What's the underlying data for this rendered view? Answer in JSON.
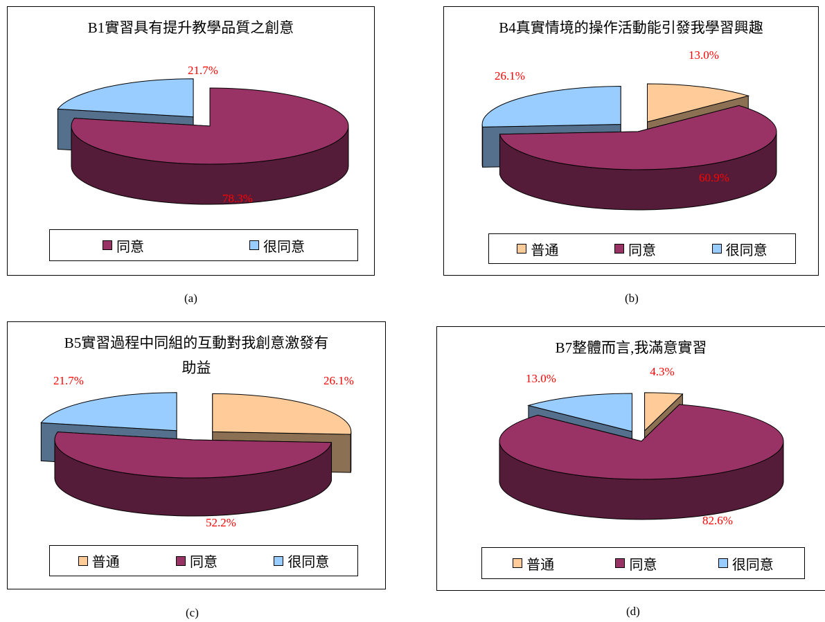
{
  "colors": {
    "normal": "#ffcc99",
    "agree": "#993366",
    "strongly_agree": "#99ccff",
    "label": "#ff0000"
  },
  "captions": [
    "(a)",
    "(b)",
    "(c)",
    "(d)"
  ],
  "chart_data": [
    {
      "type": "pie",
      "title": "B1實習具有提升教學品質之創意",
      "categories": [
        "同意",
        "很同意"
      ],
      "values": [
        78.3,
        21.7
      ],
      "labels": [
        "78.3%",
        "21.7%"
      ],
      "legend": [
        "同意",
        "很同意"
      ],
      "legend_position": "bottom"
    },
    {
      "type": "pie",
      "title": "B4真實情境的操作活動能引發我學習興趣",
      "categories": [
        "普通",
        "同意",
        "很同意"
      ],
      "values": [
        13.0,
        60.9,
        26.1
      ],
      "labels": [
        "13.0%",
        "60.9%",
        "26.1%"
      ],
      "legend": [
        "普通",
        "同意",
        "很同意"
      ],
      "legend_position": "bottom"
    },
    {
      "type": "pie",
      "title": "B5實習過程中同組的互動對我創意激發有助益",
      "title_lines": [
        "B5實習過程中同組的互動對我創意激發有",
        "助益"
      ],
      "categories": [
        "普通",
        "同意",
        "很同意"
      ],
      "values": [
        26.1,
        52.2,
        21.7
      ],
      "labels": [
        "26.1%",
        "52.2%",
        "21.7%"
      ],
      "legend": [
        "普通",
        "同意",
        "很同意"
      ],
      "legend_position": "bottom"
    },
    {
      "type": "pie",
      "title": "B7整體而言,我滿意實習",
      "categories": [
        "普通",
        "同意",
        "很同意"
      ],
      "values": [
        4.3,
        82.6,
        13.0
      ],
      "labels": [
        "4.3%",
        "82.6%",
        "13.0%"
      ],
      "legend": [
        "普通",
        "同意",
        "很同意"
      ],
      "legend_position": "bottom"
    }
  ]
}
